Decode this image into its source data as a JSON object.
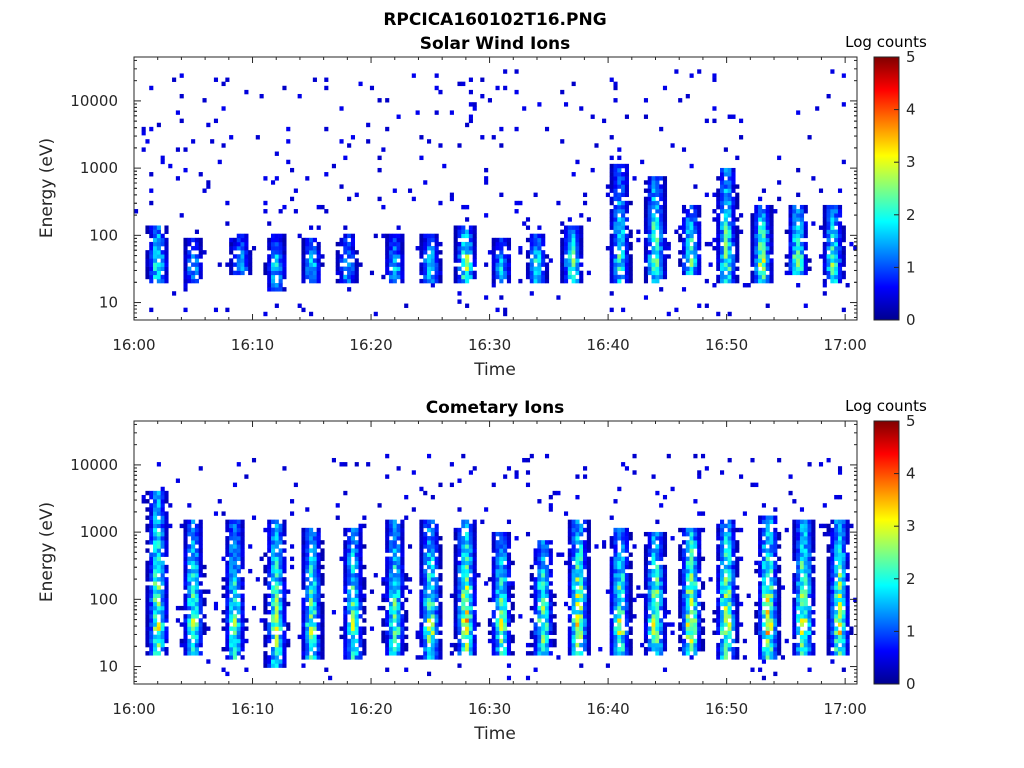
{
  "figure_title": "RPCICA160102T16.PNG",
  "colormap": [
    "#00008f",
    "#0000ff",
    "#0080ff",
    "#00ffff",
    "#80ff80",
    "#ffff00",
    "#ff8000",
    "#ff0000",
    "#800000"
  ],
  "chart_data": [
    {
      "type": "heatmap",
      "title": "Solar Wind Ions",
      "xlabel": "Time",
      "ylabel": "Energy (eV)",
      "yscale": "log",
      "xlim": [
        "16:00",
        "17:01"
      ],
      "ylim": [
        5.5,
        45000
      ],
      "xticks": [
        "16:00",
        "16:10",
        "16:20",
        "16:30",
        "16:40",
        "16:50",
        "17:00"
      ],
      "yticks": [
        "10",
        "100",
        "1000",
        "10000"
      ],
      "colorbar": {
        "label": "Log counts",
        "range": [
          0,
          5
        ],
        "ticks": [
          "0",
          "1",
          "2",
          "3",
          "4",
          "5"
        ]
      },
      "bursts": [
        {
          "t": "16:02",
          "energy_range": [
            20,
            150
          ],
          "peak_log_counts": 2.3
        },
        {
          "t": "16:05",
          "energy_range": [
            20,
            90
          ],
          "peak_log_counts": 1.5
        },
        {
          "t": "16:09",
          "energy_range": [
            25,
            100
          ],
          "peak_log_counts": 1.6
        },
        {
          "t": "16:12",
          "energy_range": [
            15,
            100
          ],
          "peak_log_counts": 1.8
        },
        {
          "t": "16:15",
          "energy_range": [
            20,
            90
          ],
          "peak_log_counts": 1.7
        },
        {
          "t": "16:18",
          "energy_range": [
            20,
            100
          ],
          "peak_log_counts": 1.6
        },
        {
          "t": "16:22",
          "energy_range": [
            20,
            100
          ],
          "peak_log_counts": 1.7
        },
        {
          "t": "16:25",
          "energy_range": [
            20,
            100
          ],
          "peak_log_counts": 1.9
        },
        {
          "t": "16:28",
          "energy_range": [
            20,
            150
          ],
          "peak_log_counts": 2.6
        },
        {
          "t": "16:31",
          "energy_range": [
            20,
            90
          ],
          "peak_log_counts": 1.6
        },
        {
          "t": "16:34",
          "energy_range": [
            20,
            100
          ],
          "peak_log_counts": 2.0
        },
        {
          "t": "16:37",
          "energy_range": [
            20,
            150
          ],
          "peak_log_counts": 2.4
        },
        {
          "t": "16:41",
          "energy_range": [
            20,
            1200
          ],
          "peak_log_counts": 2.0
        },
        {
          "t": "16:44",
          "energy_range": [
            20,
            800
          ],
          "peak_log_counts": 2.5
        },
        {
          "t": "16:47",
          "energy_range": [
            25,
            300
          ],
          "peak_log_counts": 2.2
        },
        {
          "t": "16:50",
          "energy_range": [
            20,
            1000
          ],
          "peak_log_counts": 2.4
        },
        {
          "t": "16:53",
          "energy_range": [
            20,
            300
          ],
          "peak_log_counts": 2.6
        },
        {
          "t": "16:56",
          "energy_range": [
            25,
            300
          ],
          "peak_log_counts": 2.4
        },
        {
          "t": "16:59",
          "energy_range": [
            20,
            300
          ],
          "peak_log_counts": 2.3
        }
      ],
      "background_noise": {
        "energy_range": [
          6,
          30000
        ],
        "log_counts": 0.3
      }
    },
    {
      "type": "heatmap",
      "title": "Cometary Ions",
      "xlabel": "Time",
      "ylabel": "Energy (eV)",
      "yscale": "log",
      "xlim": [
        "16:00",
        "17:01"
      ],
      "ylim": [
        5.5,
        45000
      ],
      "xticks": [
        "16:00",
        "16:10",
        "16:20",
        "16:30",
        "16:40",
        "16:50",
        "17:00"
      ],
      "yticks": [
        "10",
        "100",
        "1000",
        "10000"
      ],
      "colorbar": {
        "label": "Log counts",
        "range": [
          0,
          5
        ],
        "ticks": [
          "0",
          "1",
          "2",
          "3",
          "4",
          "5"
        ]
      },
      "bursts": [
        {
          "t": "16:02",
          "energy_range": [
            15,
            4000
          ],
          "peak_log_counts": 2.7
        },
        {
          "t": "16:05",
          "energy_range": [
            15,
            1500
          ],
          "peak_log_counts": 2.4
        },
        {
          "t": "16:08.5",
          "energy_range": [
            12,
            1500
          ],
          "peak_log_counts": 2.3
        },
        {
          "t": "16:12",
          "energy_range": [
            10,
            1500
          ],
          "peak_log_counts": 2.6
        },
        {
          "t": "16:15",
          "energy_range": [
            12,
            1200
          ],
          "peak_log_counts": 2.5
        },
        {
          "t": "16:18.5",
          "energy_range": [
            12,
            1200
          ],
          "peak_log_counts": 2.5
        },
        {
          "t": "16:22",
          "energy_range": [
            15,
            1500
          ],
          "peak_log_counts": 2.4
        },
        {
          "t": "16:25",
          "energy_range": [
            12,
            1500
          ],
          "peak_log_counts": 2.6
        },
        {
          "t": "16:28",
          "energy_range": [
            15,
            1500
          ],
          "peak_log_counts": 3.2
        },
        {
          "t": "16:31",
          "energy_range": [
            15,
            1000
          ],
          "peak_log_counts": 2.5
        },
        {
          "t": "16:34.5",
          "energy_range": [
            15,
            800
          ],
          "peak_log_counts": 2.6
        },
        {
          "t": "16:37.5",
          "energy_range": [
            15,
            1500
          ],
          "peak_log_counts": 3.0
        },
        {
          "t": "16:41",
          "energy_range": [
            15,
            1200
          ],
          "peak_log_counts": 2.6
        },
        {
          "t": "16:44",
          "energy_range": [
            15,
            1000
          ],
          "peak_log_counts": 2.9
        },
        {
          "t": "16:47",
          "energy_range": [
            15,
            1200
          ],
          "peak_log_counts": 3.2
        },
        {
          "t": "16:50",
          "energy_range": [
            12,
            1500
          ],
          "peak_log_counts": 3.0
        },
        {
          "t": "16:53.5",
          "energy_range": [
            12,
            1800
          ],
          "peak_log_counts": 3.1
        },
        {
          "t": "16:56.5",
          "energy_range": [
            15,
            1500
          ],
          "peak_log_counts": 3.0
        },
        {
          "t": "16:59.5",
          "energy_range": [
            15,
            1500
          ],
          "peak_log_counts": 2.9
        }
      ],
      "background_noise": {
        "energy_range": [
          6,
          15000
        ],
        "log_counts": 0.3
      }
    }
  ]
}
